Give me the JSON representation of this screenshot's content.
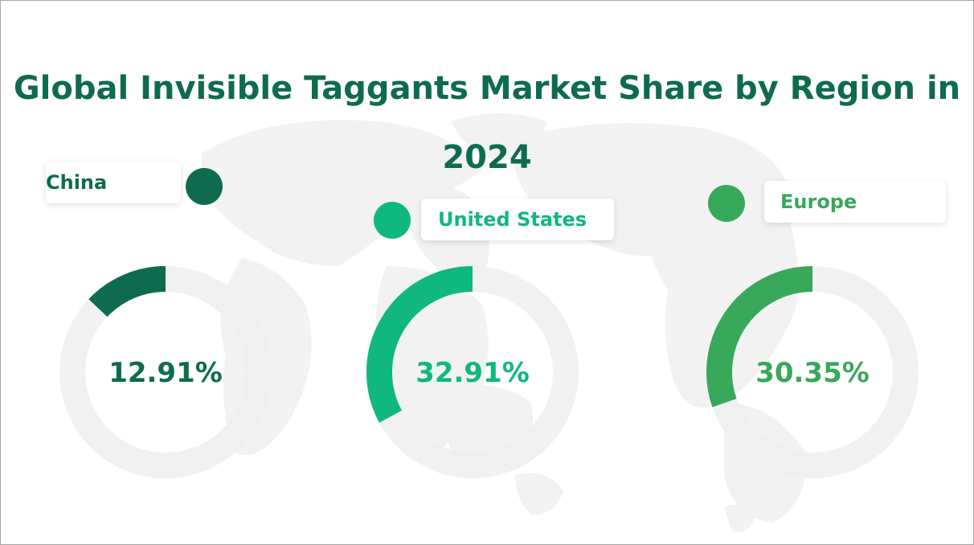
{
  "chart_data": {
    "type": "donut",
    "title": "Global Invisible Taggants Market Share by Region in 2024",
    "series": [
      {
        "name": "China",
        "value": 12.91,
        "value_label": "12.91%",
        "color": "#0e6b50"
      },
      {
        "name": "United States",
        "value": 32.91,
        "value_label": "32.91%",
        "color": "#10b77f"
      },
      {
        "name": "Europe",
        "value": 30.35,
        "value_label": "30.35%",
        "color": "#38a85a"
      }
    ],
    "track_color": "#efefef",
    "title_color": "#0e6b50",
    "background_decoration": "world-map"
  }
}
